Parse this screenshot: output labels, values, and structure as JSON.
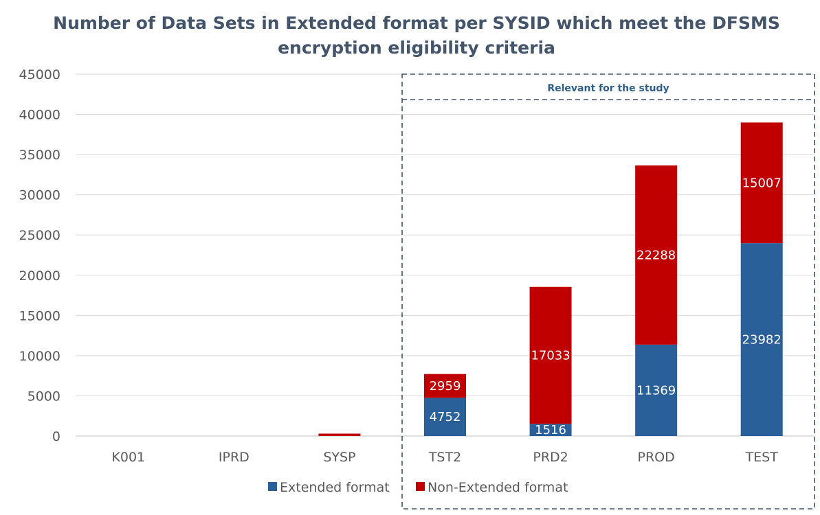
{
  "chart_data": {
    "type": "bar",
    "stacked": true,
    "title": [
      "Number of Data Sets in Extended format per SYSID which meet the DFSMS",
      "encryption eligibility criteria"
    ],
    "categories": [
      "K001",
      "IPRD",
      "SYSP",
      "TST2",
      "PRD2",
      "PROD",
      "TEST"
    ],
    "series": [
      {
        "name": "Extended format",
        "color": "#2A6099",
        "values": [
          0,
          0,
          0,
          4752,
          1516,
          11369,
          23982
        ],
        "labels": [
          "",
          "",
          "",
          "4752",
          "1516",
          "11369",
          "23982"
        ]
      },
      {
        "name": "Non-Extended format",
        "color": "#C00000",
        "values": [
          0,
          0,
          300,
          2959,
          17033,
          22288,
          15007
        ],
        "labels": [
          "",
          "",
          "",
          "2959",
          "17033",
          "22288",
          "15007"
        ]
      }
    ],
    "ylim": [
      0,
      45000
    ],
    "yticks": [
      0,
      5000,
      10000,
      15000,
      20000,
      25000,
      30000,
      35000,
      40000,
      45000
    ],
    "grid": true,
    "legend": "bottom",
    "annotation": {
      "text": "Relevant for the study",
      "categories": [
        "TST2",
        "PRD2",
        "PROD",
        "TEST"
      ]
    }
  }
}
